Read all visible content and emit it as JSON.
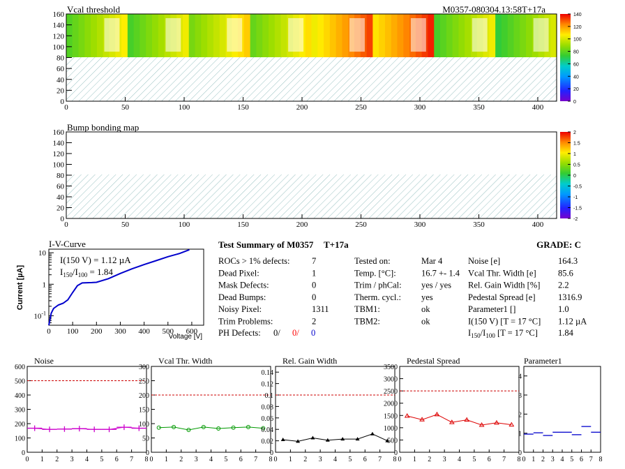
{
  "map1": {
    "title": "Vcal threshold",
    "module_label": "M0357-080304.13:58T+17a",
    "x_ticks": [
      "0",
      "50",
      "100",
      "150",
      "200",
      "250",
      "300",
      "350",
      "400"
    ],
    "y_ticks": [
      "0",
      "20",
      "40",
      "60",
      "80",
      "100",
      "120",
      "140",
      "160"
    ],
    "z_ticks": [
      "0",
      "20",
      "40",
      "60",
      "80",
      "100",
      "120",
      "140"
    ]
  },
  "map2": {
    "title": "Bump bonding map",
    "x_ticks": [
      "0",
      "50",
      "100",
      "150",
      "200",
      "250",
      "300",
      "350",
      "400"
    ],
    "y_ticks": [
      "0",
      "20",
      "40",
      "60",
      "80",
      "100",
      "120",
      "140",
      "160"
    ],
    "z_ticks": [
      "-2",
      "-1.5",
      "-1",
      "-0.5",
      "0",
      "0.5",
      "1",
      "1.5",
      "2"
    ]
  },
  "iv": {
    "title": "I-V-Curve",
    "ylabel": "Current [µA]",
    "xlabel": "Voltage [V]",
    "ann1": "I(150 V) = 1.12 µA",
    "ann2_prefix": "I",
    "ann2_sub1": "150",
    "ann2_mid": "/I",
    "ann2_sub2": "100",
    "ann2_value": " =  1.84",
    "x_ticks": [
      "0",
      "100",
      "200",
      "300",
      "400",
      "500",
      "600"
    ],
    "y_ticks": [
      "10",
      "1",
      "10"
    ],
    "y_tick_exp": [
      "",
      "",
      "-1"
    ]
  },
  "summary": {
    "title": "Test Summary of M0357",
    "tplus": "T+17a",
    "grade_label": "GRADE:  C",
    "col1": [
      {
        "label": "ROCs > 1% defects:",
        "value": "7"
      },
      {
        "label": "Dead Pixel:",
        "value": "1"
      },
      {
        "label": "Mask Defects:",
        "value": "0"
      },
      {
        "label": "Dead Bumps:",
        "value": "0"
      },
      {
        "label": "Noisy Pixel:",
        "value": "1311"
      },
      {
        "label": "Trim Problems:",
        "value": "2"
      }
    ],
    "ph_label": "PH Defects:",
    "ph_values": [
      "0/",
      "0/",
      "0"
    ],
    "ph_colors": [
      "#000000",
      "#ff0000",
      "#0000cc"
    ],
    "col2": [
      {
        "label": "Tested on:",
        "value": "Mar 4"
      },
      {
        "label": "Temp. [°C]:",
        "value": "16.7 +- 1.4"
      },
      {
        "label": "Trim / phCal:",
        "value": "yes / yes"
      },
      {
        "label": "Therm. cycl.:",
        "value": "yes"
      },
      {
        "label": "TBM1:",
        "value": "ok"
      },
      {
        "label": "TBM2:",
        "value": "ok"
      }
    ],
    "col3": [
      {
        "label": "Noise [e]",
        "value": "164.3"
      },
      {
        "label": "Vcal Thr. Width [e]",
        "value": "85.6"
      },
      {
        "label": "Rel. Gain Width [%]",
        "value": "2.2"
      },
      {
        "label": "Pedestal Spread [e]",
        "value": "1316.9"
      },
      {
        "label": "Parameter1 []",
        "value": "1.0"
      },
      {
        "label": "I(150 V) [T = 17 °C]",
        "value": "1.12 µA"
      }
    ],
    "ratio_label_pre": "I",
    "ratio_sub1": "150",
    "ratio_mid": "/I",
    "ratio_sub2": "100",
    "ratio_label_post": "  [T = 17 °C]",
    "ratio_value": "1.84"
  },
  "chart_data": [
    {
      "type": "heatmap",
      "title": "Vcal threshold",
      "xlim": [
        0,
        416
      ],
      "ylim": [
        0,
        160
      ],
      "zlim": [
        0,
        140
      ],
      "rocs_per_row": 8,
      "roc_mean_values_top_row": [
        92,
        90,
        98,
        95,
        118,
        122,
        90,
        86
      ],
      "bottom_row": "not tested (hatched)"
    },
    {
      "type": "heatmap",
      "title": "Bump bonding map",
      "xlim": [
        0,
        416
      ],
      "ylim": [
        0,
        160
      ],
      "zlim": [
        -2,
        2
      ],
      "bottom_row": "not tested (hatched)"
    },
    {
      "type": "line",
      "title": "I-V-Curve",
      "xlabel": "Voltage [V]",
      "ylabel": "Current [µA]",
      "y_scale": "log",
      "xlim": [
        0,
        650
      ],
      "ylim": [
        0.05,
        13
      ],
      "x": [
        0,
        10,
        20,
        40,
        60,
        80,
        100,
        120,
        140,
        160,
        180,
        200,
        250,
        300,
        350,
        400,
        450,
        500,
        550,
        590
      ],
      "y": [
        0.05,
        0.12,
        0.17,
        0.22,
        0.25,
        0.32,
        0.55,
        0.9,
        1.1,
        1.12,
        1.13,
        1.15,
        1.5,
        2.2,
        3.1,
        4.2,
        5.6,
        7.5,
        9.5,
        12.5
      ],
      "color": "#0000cc"
    },
    {
      "type": "line",
      "title": "Noise",
      "xlim": [
        0,
        8
      ],
      "ylim": [
        0,
        600
      ],
      "x": [
        0.5,
        1.5,
        2.5,
        3.5,
        4.5,
        5.5,
        6.5,
        7.5
      ],
      "y": [
        168,
        160,
        162,
        165,
        160,
        160,
        175,
        168
      ],
      "reference_line": 500,
      "color": "#cc00cc",
      "y_ticks": [
        0,
        100,
        200,
        300,
        400,
        500,
        600
      ]
    },
    {
      "type": "line",
      "title": "Vcal Thr. Width",
      "xlim": [
        0,
        8
      ],
      "ylim": [
        0,
        300
      ],
      "x": [
        0.5,
        1.5,
        2.5,
        3.5,
        4.5,
        5.5,
        6.5,
        7.5
      ],
      "y": [
        86,
        88,
        78,
        88,
        83,
        86,
        88,
        84
      ],
      "reference_line": 200,
      "color": "#009900",
      "y_ticks": [
        0,
        50,
        100,
        150,
        200,
        250,
        300
      ]
    },
    {
      "type": "line",
      "title": "Rel. Gain Width",
      "xlim": [
        0,
        8
      ],
      "ylim": [
        0,
        0.15
      ],
      "x": [
        0.5,
        1.5,
        2.5,
        3.5,
        4.5,
        5.5,
        6.5,
        7.5
      ],
      "y": [
        0.022,
        0.019,
        0.025,
        0.021,
        0.023,
        0.023,
        0.032,
        0.02
      ],
      "reference_line": 0.1,
      "color": "#000000",
      "y_ticks": [
        0,
        0.02,
        0.04,
        0.06,
        0.08,
        0.1,
        0.12,
        0.14
      ]
    },
    {
      "type": "line",
      "title": "Pedestal Spread",
      "xlim": [
        0,
        8
      ],
      "ylim": [
        0,
        3500
      ],
      "x": [
        0.5,
        1.5,
        2.5,
        3.5,
        4.5,
        5.5,
        6.5,
        7.5
      ],
      "y": [
        1480,
        1330,
        1540,
        1220,
        1320,
        1110,
        1200,
        1120
      ],
      "reference_line": 2500,
      "color": "#dd0000",
      "y_ticks": [
        0,
        500,
        1000,
        1500,
        2000,
        2500,
        3000,
        3500
      ]
    },
    {
      "type": "scatter",
      "title": "Parameter1",
      "xlim": [
        0,
        8
      ],
      "ylim": [
        0,
        4.5
      ],
      "x": [
        0.5,
        1.5,
        2.5,
        3.5,
        4.5,
        5.5,
        6.5,
        7.5
      ],
      "y": [
        0.95,
        1.02,
        0.88,
        1.05,
        1.05,
        0.92,
        1.35,
        1.05
      ],
      "color": "#0000cc",
      "y_ticks": [
        0,
        1,
        2,
        3,
        4
      ]
    }
  ]
}
